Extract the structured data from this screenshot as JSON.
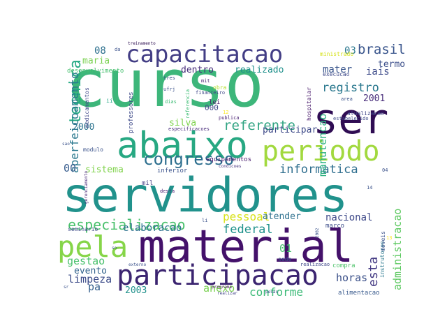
{
  "words": [
    {
      "text": "curso",
      "color": "#3db67a"
    },
    {
      "text": "servidores",
      "color": "#21928c"
    },
    {
      "text": "material",
      "color": "#44116a"
    },
    {
      "text": "capacitacao",
      "color": "#433e85"
    },
    {
      "text": "ser",
      "color": "#2f0c53"
    },
    {
      "text": "abaixo",
      "color": "#27a882"
    },
    {
      "text": "periodo",
      "color": "#a2d93f"
    },
    {
      "text": "participacao",
      "color": "#3b2470"
    },
    {
      "text": "pela",
      "color": "#86d549"
    },
    {
      "text": "congresso",
      "color": "#2c6e8e"
    },
    {
      "text": "tecnica",
      "color": "#23a982"
    },
    {
      "text": "aperfeicoamento",
      "color": "#2a788e"
    },
    {
      "text": "especializacao",
      "color": "#4ac16d"
    },
    {
      "text": "informatica",
      "color": "#2e6e8e"
    },
    {
      "text": "referente",
      "color": "#31a483"
    },
    {
      "text": "brasil",
      "color": "#39558c"
    },
    {
      "text": "registro",
      "color": "#2a788e"
    },
    {
      "text": "pessoal",
      "color": "#d8e219"
    },
    {
      "text": "federal",
      "color": "#20928c"
    },
    {
      "text": "nacional",
      "color": "#3e4989"
    },
    {
      "text": "sistema",
      "color": "#81d34d"
    },
    {
      "text": "limpeza",
      "color": "#3d4c89"
    },
    {
      "text": "conforme",
      "color": "#3aba76"
    },
    {
      "text": "anexo",
      "color": "#7ad151"
    },
    {
      "text": "horas",
      "color": "#3b5089"
    },
    {
      "text": "esta",
      "color": "#443a83"
    },
    {
      "text": "administracao",
      "color": "#5ec962"
    },
    {
      "text": "manutencao",
      "color": "#2ab07f"
    },
    {
      "text": "gestao",
      "color": "#4ac16d"
    },
    {
      "text": "evento",
      "color": "#33638d"
    },
    {
      "text": "elaboracao",
      "color": "#2c718e"
    },
    {
      "text": "realizado",
      "color": "#21918c"
    },
    {
      "text": "dentro",
      "color": "#472d7b"
    },
    {
      "text": "participar",
      "color": "#3e4a89"
    },
    {
      "text": "maria",
      "color": "#7ad151"
    },
    {
      "text": "mater",
      "color": "#39558c"
    },
    {
      "text": "iais",
      "color": "#3e4c8a"
    },
    {
      "text": "termo",
      "color": "#3c4f8a"
    },
    {
      "text": "silva",
      "color": "#7fd34e"
    },
    {
      "text": "atender",
      "color": "#2d708e"
    },
    {
      "text": "2001",
      "color": "#472c7a"
    },
    {
      "text": "2000",
      "color": "#2c738e"
    },
    {
      "text": "2003",
      "color": "#21918c"
    },
    {
      "text": "000",
      "color": "#3f4889"
    },
    {
      "text": "08",
      "color": "#2d708e"
    },
    {
      "text": "03",
      "color": "#2a778e"
    },
    {
      "text": "00",
      "color": "#365c8d"
    },
    {
      "text": "01",
      "color": "#46c06f"
    },
    {
      "text": "pa",
      "color": "#35608d"
    },
    {
      "text": "desenvolvimento",
      "color": "#46c06f"
    },
    {
      "text": "equipamentos",
      "color": "#481b6d"
    },
    {
      "text": "professores",
      "color": "#3e4a89"
    },
    {
      "text": "inferior",
      "color": "#3b528b"
    },
    {
      "text": "modulo",
      "color": "#3b528b"
    },
    {
      "text": "seminario",
      "color": "#3e4989"
    },
    {
      "text": "mil",
      "color": "#443b84"
    },
    {
      "text": "sede",
      "color": "#3a538b"
    },
    {
      "text": "marco",
      "color": "#3d4d8a"
    },
    {
      "text": "compra",
      "color": "#4ec36b"
    },
    {
      "text": "alimentacao",
      "color": "#38598c"
    },
    {
      "text": "treinamento",
      "color": "#2a0b4e"
    },
    {
      "text": "ministrado",
      "color": "#d5e21a"
    },
    {
      "text": "execucao",
      "color": "#3e4989"
    },
    {
      "text": "atualizacao",
      "color": "#3f4788"
    },
    {
      "text": "estabelecido",
      "color": "#3e4a89"
    },
    {
      "text": "especificacoes",
      "color": "#472a7a"
    },
    {
      "text": "condicoes",
      "color": "#46327e"
    },
    {
      "text": "medicamentos",
      "color": "#3f4889"
    },
    {
      "text": "gerenciamento",
      "color": "#482878"
    },
    {
      "text": "hospitalar",
      "color": "#48196b"
    },
    {
      "text": "financeiro",
      "color": "#3f4788"
    },
    {
      "text": "referencia",
      "color": "#3dbc74"
    },
    {
      "text": "instrutores",
      "color": "#2a788e"
    },
    {
      "text": "moveis",
      "color": "#3b528b"
    },
    {
      "text": "realizacao",
      "color": "#3f4889"
    },
    {
      "text": "programa",
      "color": "#470d60"
    },
    {
      "text": "realizar",
      "color": "#414487"
    },
    {
      "text": "pecas",
      "color": "#3b528b"
    },
    {
      "text": "externo",
      "color": "#3b528b"
    },
    {
      "text": "desta",
      "color": "#482173"
    },
    {
      "text": "publica",
      "color": "#482173"
    },
    {
      "text": "obra",
      "color": "#b5de2b"
    },
    {
      "text": "area",
      "color": "#3b528b"
    },
    {
      "text": "lei",
      "color": "#481a6c"
    },
    {
      "text": "mit",
      "color": "#481f70"
    },
    {
      "text": "dias",
      "color": "#3dbc74"
    },
    {
      "text": "tres",
      "color": "#3b528b"
    },
    {
      "text": "ufrj",
      "color": "#3b528b"
    },
    {
      "text": "ii",
      "color": "#22a785"
    },
    {
      "text": "sao",
      "color": "#3b528b"
    },
    {
      "text": "da",
      "color": "#3b528b"
    },
    {
      "text": "so",
      "color": "#3b528b"
    },
    {
      "text": "li",
      "color": "#3b528b"
    },
    {
      "text": "sr",
      "color": "#3b528b"
    },
    {
      "text": "12",
      "color": "#fde725"
    },
    {
      "text": "13",
      "color": "#fde725"
    },
    {
      "text": "14",
      "color": "#3b528b"
    },
    {
      "text": "04",
      "color": "#3b528b"
    },
    {
      "text": "2002",
      "color": "#3b528b"
    }
  ]
}
